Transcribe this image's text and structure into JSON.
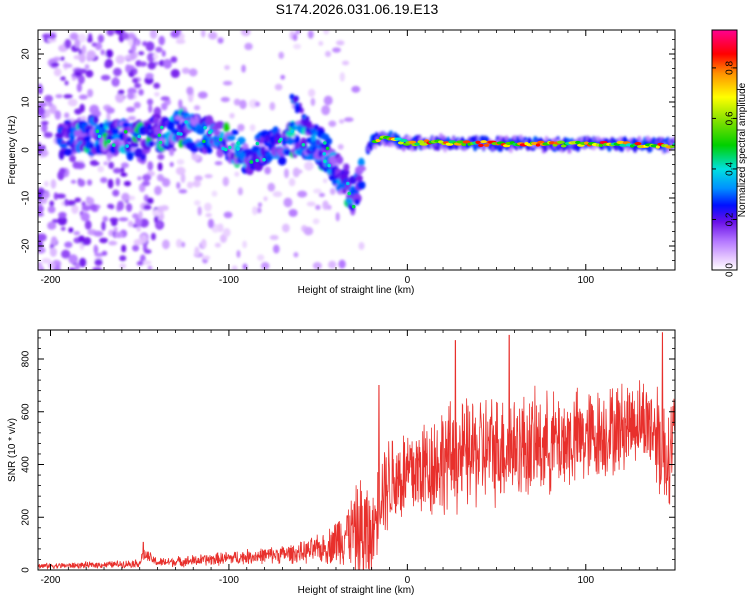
{
  "title": "S174.2026.031.06.19.E13",
  "colors": {
    "snr_line": "#e8302c",
    "frame": "#000000",
    "spectrum_colormap": [
      "#ffffff",
      "#e6c8ff",
      "#b478ff",
      "#7a1fe0",
      "#3a00d0",
      "#0010ff",
      "#0090ff",
      "#00e0e0",
      "#00d000",
      "#c0f000",
      "#ffff00",
      "#ff9000",
      "#ff0000",
      "#ff00a0"
    ]
  },
  "chart_data": [
    {
      "type": "heatmap",
      "panel": "spectrogram",
      "xlabel": "Height of straight line (km)",
      "ylabel": "Frequency (Hz)",
      "xlim": [
        -207,
        150
      ],
      "ylim": [
        -25,
        25
      ],
      "xticks": [
        -200,
        -100,
        0,
        100
      ],
      "xtick_labels": [
        "-200",
        "-100",
        "0",
        "100"
      ],
      "yticks": [
        -20,
        -10,
        0,
        10,
        20
      ],
      "ytick_labels": [
        "-20",
        "-10",
        "0",
        "10",
        "20"
      ],
      "colorbar": {
        "label": "Normalized spectral amplitude",
        "range": [
          0,
          0.95
        ],
        "ticks": [
          0.0,
          0.2,
          0.4,
          0.6,
          0.8
        ],
        "tick_labels": [
          "0.0",
          "0.2",
          "0.4",
          "0.6",
          "0.8"
        ]
      },
      "ridge": {
        "description_points_km": [
          -190,
          -170,
          -150,
          -130,
          -120,
          -110,
          -100,
          -90,
          -80,
          -70,
          -60,
          -50,
          -40,
          -35,
          -30,
          -20,
          -10,
          0,
          20,
          50,
          80,
          110,
          140,
          150
        ],
        "frequency_hz": [
          2.5,
          3,
          1.5,
          5,
          4,
          3,
          1,
          -1,
          0,
          1,
          3,
          1,
          -3,
          -6,
          -10,
          2,
          2.5,
          1.5,
          1.5,
          1.3,
          1.2,
          1.3,
          1.0,
          1.0
        ]
      }
    },
    {
      "type": "line",
      "panel": "snr",
      "xlabel": "Height of straight line (km)",
      "ylabel": "SNR (10 * v/v)",
      "xlim": [
        -207,
        150
      ],
      "ylim": [
        0,
        910
      ],
      "xticks": [
        -200,
        -100,
        0,
        100
      ],
      "xtick_labels": [
        "-200",
        "-100",
        "0",
        "100"
      ],
      "yticks": [
        0,
        200,
        400,
        600,
        800
      ],
      "ytick_labels": [
        "0",
        "200",
        "400",
        "600",
        "800"
      ],
      "series": [
        {
          "name": "SNR",
          "envelope_x_km": [
            -207,
            -180,
            -160,
            -150,
            -148,
            -140,
            -120,
            -100,
            -80,
            -60,
            -45,
            -40,
            -35,
            -30,
            -25,
            -22,
            -20,
            -15,
            -10,
            0,
            10,
            20,
            30,
            40,
            50,
            60,
            70,
            80,
            90,
            100,
            110,
            120,
            125,
            130,
            135,
            140,
            145,
            150
          ],
          "envelope_mean": [
            15,
            18,
            22,
            26,
            60,
            28,
            35,
            45,
            55,
            65,
            85,
            110,
            140,
            150,
            120,
            135,
            110,
            300,
            340,
            360,
            390,
            420,
            430,
            450,
            460,
            470,
            470,
            480,
            490,
            500,
            520,
            540,
            560,
            570,
            560,
            520,
            420,
            520
          ],
          "envelope_spread": [
            12,
            14,
            16,
            18,
            30,
            20,
            25,
            30,
            35,
            45,
            70,
            110,
            140,
            160,
            300,
            250,
            150,
            200,
            220,
            220,
            230,
            240,
            240,
            250,
            240,
            240,
            230,
            220,
            220,
            210,
            200,
            200,
            190,
            180,
            200,
            250,
            250,
            200
          ],
          "peak_values": [
            {
              "x": -148,
              "y": 105
            },
            {
              "x": -16,
              "y": 700
            },
            {
              "x": 27,
              "y": 870
            },
            {
              "x": 57,
              "y": 890
            },
            {
              "x": 143,
              "y": 900
            }
          ]
        }
      ]
    }
  ]
}
